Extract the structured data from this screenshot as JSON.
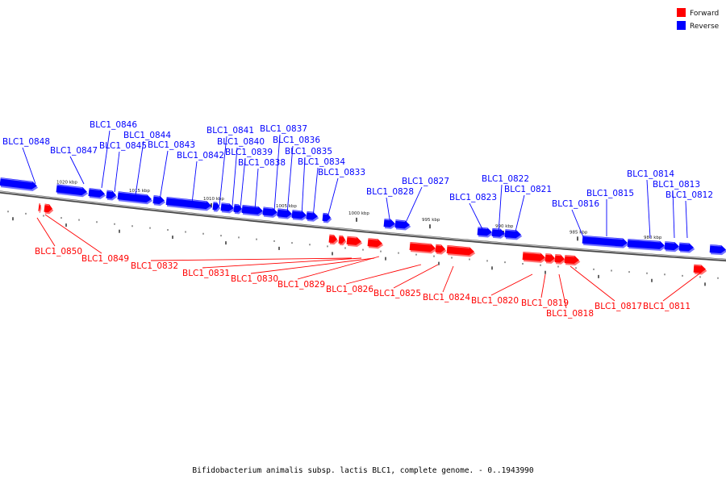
{
  "caption": "Bifidobacterium animalis subsp. lactis BLC1, complete genome. - 0..1943990",
  "legend": [
    {
      "label": "Forward",
      "color": "#ff0000"
    },
    {
      "label": "Reverse",
      "color": "#0000ff"
    }
  ],
  "colors": {
    "forward": "#ff0000",
    "reverse": "#0000ff",
    "backbone": "#888888"
  },
  "kbp_ticks": [
    "1020 kbp",
    "1015 kbp",
    "1010 kbp",
    "1005 kbp",
    "1000 kbp",
    "995 kbp",
    "990 kbp",
    "985 kbp",
    "980 kbp"
  ],
  "genes": [
    {
      "name": "BLC1_0811",
      "strand": "forward",
      "bound_label": false
    },
    {
      "name": "BLC1_0812",
      "strand": "reverse"
    },
    {
      "name": "BLC1_0813",
      "strand": "reverse"
    },
    {
      "name": "BLC1_0814",
      "strand": "reverse"
    },
    {
      "name": "BLC1_0815",
      "strand": "reverse"
    },
    {
      "name": "BLC1_0816",
      "strand": "reverse"
    },
    {
      "name": "BLC1_0817",
      "strand": "forward"
    },
    {
      "name": "BLC1_0818",
      "strand": "forward"
    },
    {
      "name": "BLC1_0819",
      "strand": "forward"
    },
    {
      "name": "BLC1_0820",
      "strand": "forward"
    },
    {
      "name": "BLC1_0821",
      "strand": "reverse"
    },
    {
      "name": "BLC1_0822",
      "strand": "reverse"
    },
    {
      "name": "BLC1_0823",
      "strand": "reverse"
    },
    {
      "name": "BLC1_0824",
      "strand": "forward"
    },
    {
      "name": "BLC1_0825",
      "strand": "forward"
    },
    {
      "name": "BLC1_0826",
      "strand": "forward"
    },
    {
      "name": "BLC1_0827",
      "strand": "reverse"
    },
    {
      "name": "BLC1_0828",
      "strand": "reverse"
    },
    {
      "name": "BLC1_0829",
      "strand": "forward"
    },
    {
      "name": "BLC1_0830",
      "strand": "forward"
    },
    {
      "name": "BLC1_0831",
      "strand": "forward"
    },
    {
      "name": "BLC1_0832",
      "strand": "forward"
    },
    {
      "name": "BLC1_0833",
      "strand": "reverse"
    },
    {
      "name": "BLC1_0834",
      "strand": "reverse"
    },
    {
      "name": "BLC1_0835",
      "strand": "reverse"
    },
    {
      "name": "BLC1_0836",
      "strand": "reverse"
    },
    {
      "name": "BLC1_0837",
      "strand": "reverse"
    },
    {
      "name": "BLC1_0838",
      "strand": "reverse"
    },
    {
      "name": "BLC1_0839",
      "strand": "reverse"
    },
    {
      "name": "BLC1_0840",
      "strand": "reverse"
    },
    {
      "name": "BLC1_0841",
      "strand": "reverse"
    },
    {
      "name": "BLC1_0842",
      "strand": "reverse"
    },
    {
      "name": "BLC1_0843",
      "strand": "reverse"
    },
    {
      "name": "BLC1_0844",
      "strand": "reverse"
    },
    {
      "name": "BLC1_0845",
      "strand": "reverse"
    },
    {
      "name": "BLC1_0846",
      "strand": "reverse"
    },
    {
      "name": "BLC1_0847",
      "strand": "reverse"
    },
    {
      "name": "BLC1_0848",
      "strand": "reverse"
    },
    {
      "name": "BLC1_0849",
      "strand": "forward"
    },
    {
      "name": "BLC1_0850",
      "strand": "forward"
    }
  ]
}
